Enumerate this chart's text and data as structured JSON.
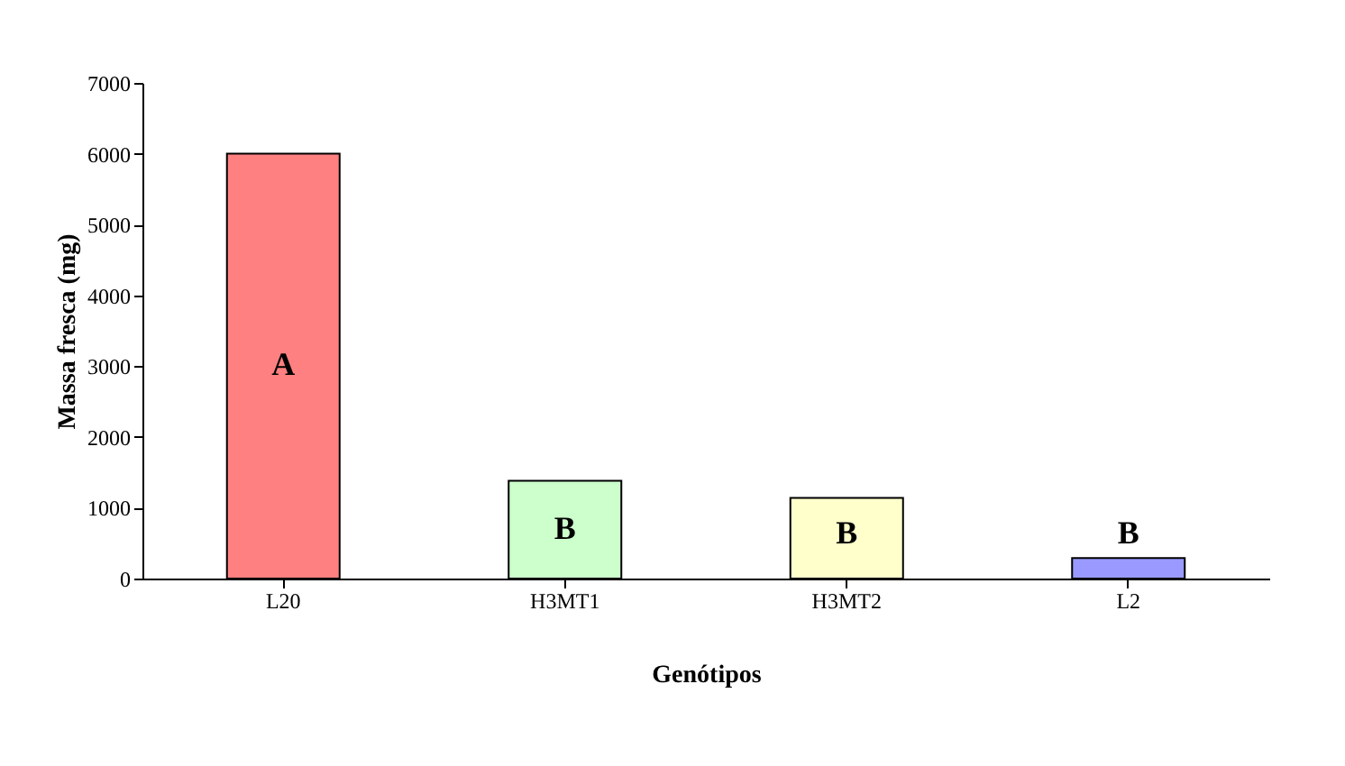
{
  "chart_data": {
    "type": "bar",
    "xlabel": "Genótipos",
    "ylabel": "Massa fresca (mg)",
    "categories": [
      "L20",
      "H3MT1",
      "H3MT2",
      "L2"
    ],
    "values": [
      6000,
      1380,
      1140,
      290
    ],
    "colors": [
      "#ff8080",
      "#ccffcc",
      "#ffffcc",
      "#9999ff"
    ],
    "ylim": [
      0,
      7000
    ],
    "yticks": [
      0,
      1000,
      2000,
      3000,
      4000,
      5000,
      6000,
      7000
    ],
    "grid": false,
    "annotations": [
      "A",
      "B",
      "B",
      "B"
    ]
  }
}
